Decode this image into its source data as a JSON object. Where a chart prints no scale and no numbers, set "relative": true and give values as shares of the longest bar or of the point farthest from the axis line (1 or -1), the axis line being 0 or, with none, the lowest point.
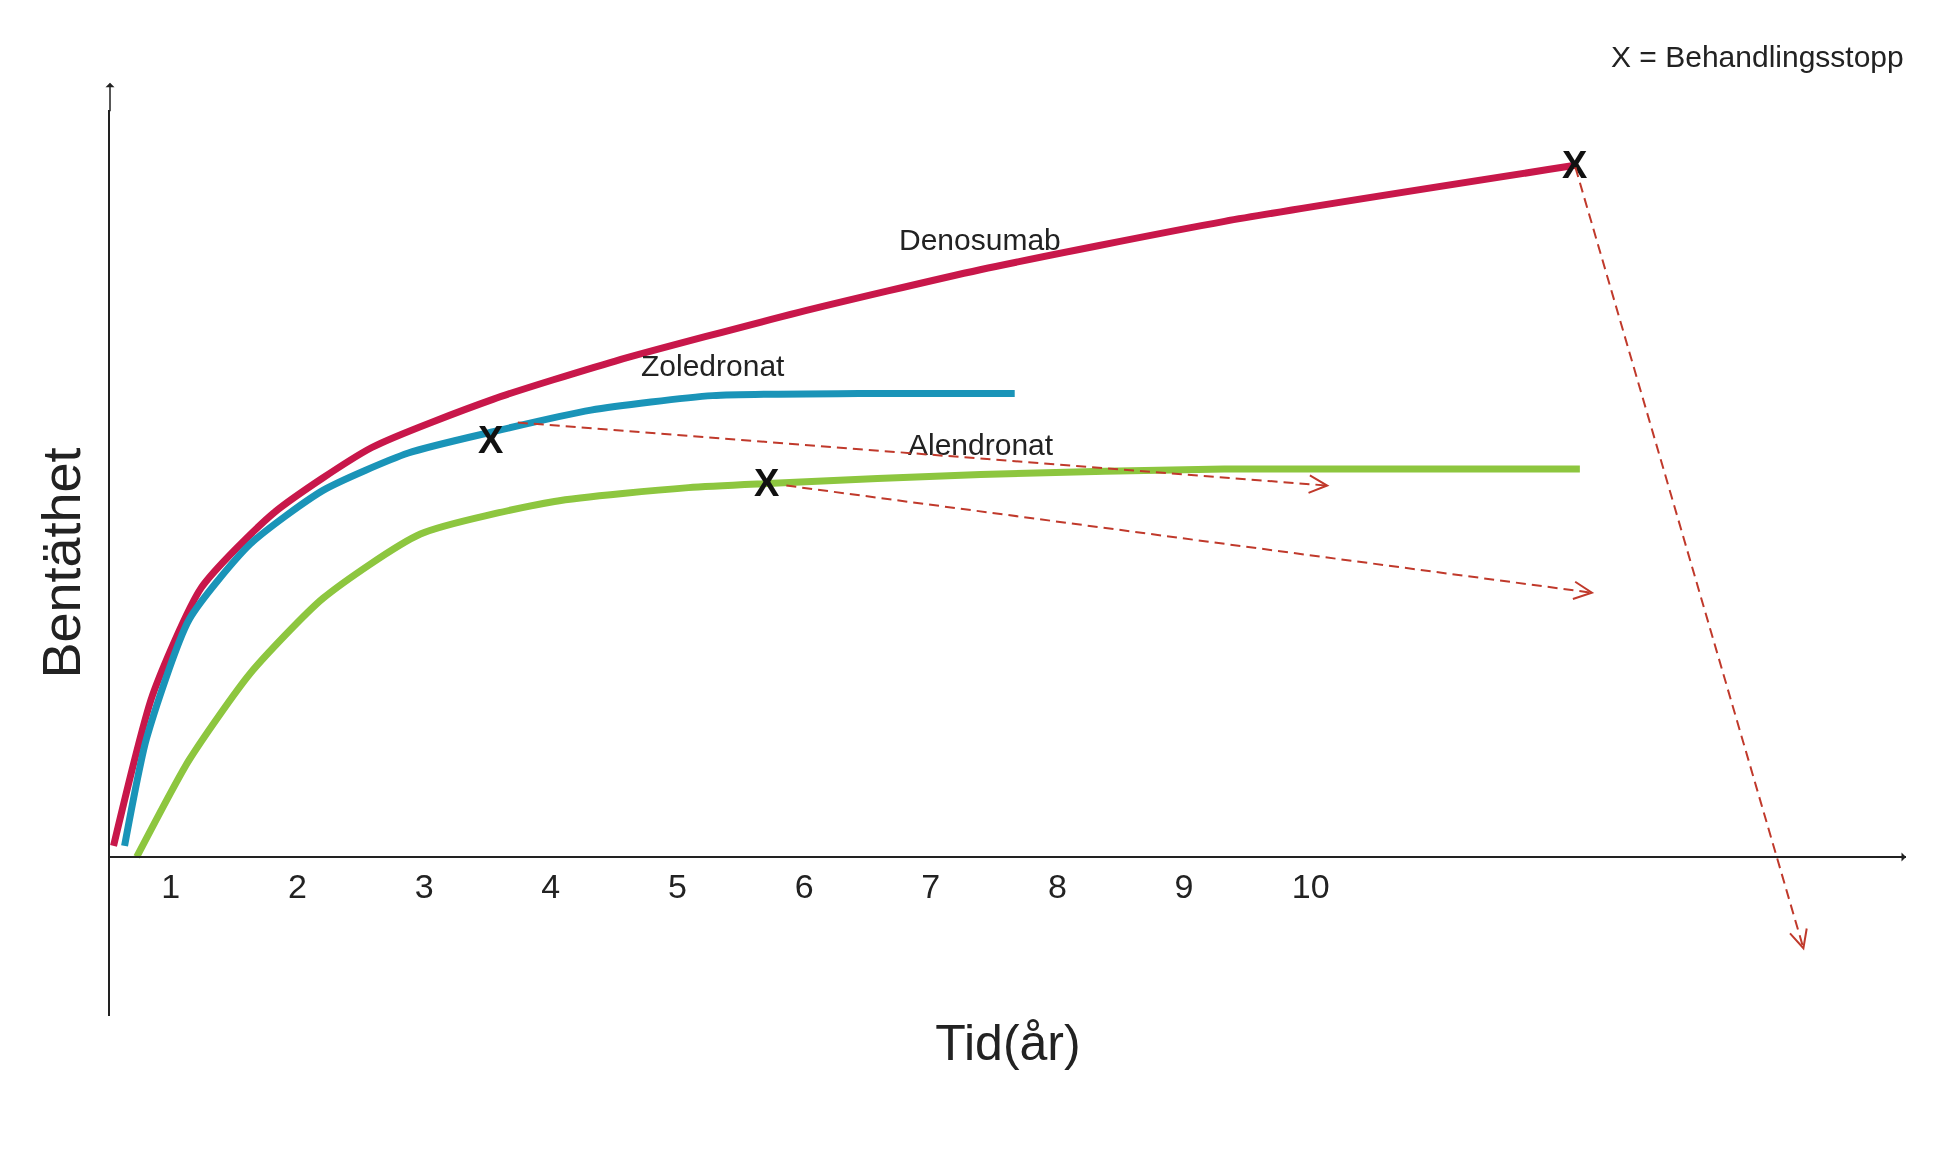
{
  "chart_data": {
    "type": "line",
    "relative": true,
    "xlabel": "Tid(år)",
    "ylabel": "Bentäthet",
    "xlim": [
      0.52,
      14.7
    ],
    "xticks": [
      1,
      2,
      3,
      4,
      5,
      6,
      7,
      8,
      9,
      10
    ],
    "grid": false,
    "legend": false,
    "marker": "none",
    "series": [
      {
        "name": "Denosumab",
        "color": "#c8174a",
        "x": [
          0.548,
          0.856,
          1.24,
          1.817,
          2.587,
          3.548,
          4.51,
          5.95,
          7.39,
          9.32,
          12.09
        ],
        "values": [
          0.016,
          0.234,
          0.389,
          0.498,
          0.592,
          0.662,
          0.717,
          0.787,
          0.849,
          0.919,
          1.0
        ]
      },
      {
        "name": "Zoledronat",
        "color": "#1a94b8",
        "x": [
          0.635,
          0.808,
          1.144,
          1.625,
          2.202,
          2.875,
          3.548,
          4.317,
          5.279,
          6.433,
          7.663
        ],
        "values": [
          0.016,
          0.171,
          0.343,
          0.452,
          0.53,
          0.584,
          0.615,
          0.646,
          0.667,
          0.67,
          0.67
        ]
      },
      {
        "name": "Alendronat",
        "color": "#8dc63f",
        "x": [
          0.731,
          1.144,
          1.625,
          2.202,
          2.971,
          4.029,
          5.087,
          5.712,
          7.394,
          9.317,
          12.125
        ],
        "values": [
          0,
          0.14,
          0.265,
          0.374,
          0.467,
          0.514,
          0.534,
          0.54,
          0.553,
          0.561,
          0.561
        ]
      }
    ],
    "annotations": [
      {
        "text": "X",
        "x": 3.53,
        "y": 0.603
      },
      {
        "text": "X",
        "x": 5.71,
        "y": 0.54
      },
      {
        "text": "X",
        "x": 12.09,
        "y": 1.0
      },
      "X = Behandlingsstopp"
    ]
  }
}
